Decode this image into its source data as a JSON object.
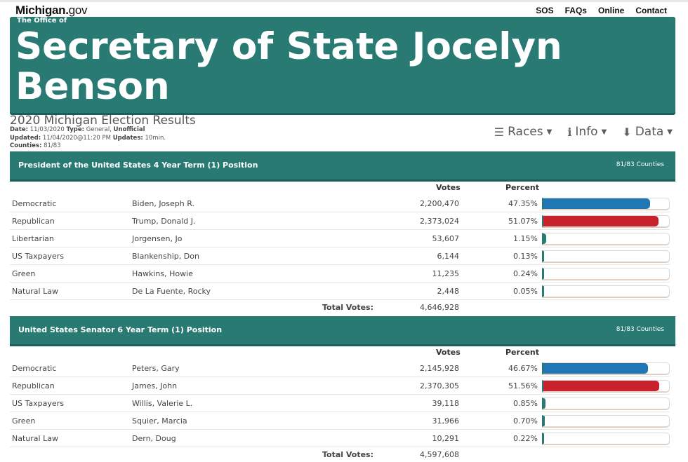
{
  "site": {
    "brand_main": "Michigan.",
    "brand_suffix": "gov"
  },
  "top_nav": [
    "SOS",
    "FAQs",
    "Online",
    "Contact"
  ],
  "banner": {
    "office_label": "The Office of",
    "title": "Secretary of State Jocelyn Benson"
  },
  "results": {
    "title": "2020 Michigan Election Results",
    "date_label": "Date:",
    "date": "11/03/2020",
    "type_label": "Type:",
    "type": "General,",
    "status": "Unofficial",
    "updated_label": "Updated:",
    "updated": "11/04/2020@11:20 PM",
    "updates_label": "Updates:",
    "updates": "10min.",
    "counties_label": "Counties:",
    "counties": "81/83"
  },
  "menu": {
    "races": "Races",
    "info": "Info",
    "data": "Data"
  },
  "colors": {
    "teal": "#287a73",
    "democratic": "#1f78b4",
    "republican": "#c8232c",
    "other": "#287a73"
  },
  "columns": {
    "votes": "Votes",
    "percent": "Percent"
  },
  "total_label": "Total Votes:",
  "races": [
    {
      "title": "President of the United States 4 Year Term (1) Position",
      "counties": "81/83 Counties",
      "total": "4,646,928",
      "rows": [
        {
          "party": "Democratic",
          "candidate": "Biden, Joseph R.",
          "votes": "2,200,470",
          "percent": "47.35%",
          "pct_value": 47.35,
          "color": "#1f78b4"
        },
        {
          "party": "Republican",
          "candidate": "Trump, Donald J.",
          "votes": "2,373,024",
          "percent": "51.07%",
          "pct_value": 51.07,
          "color": "#c8232c"
        },
        {
          "party": "Libertarian",
          "candidate": "Jorgensen, Jo",
          "votes": "53,607",
          "percent": "1.15%",
          "pct_value": 1.15,
          "color": "#287a73"
        },
        {
          "party": "US Taxpayers",
          "candidate": "Blankenship, Don",
          "votes": "6,144",
          "percent": "0.13%",
          "pct_value": 0.13,
          "color": "#287a73"
        },
        {
          "party": "Green",
          "candidate": "Hawkins, Howie",
          "votes": "11,235",
          "percent": "0.24%",
          "pct_value": 0.24,
          "color": "#287a73"
        },
        {
          "party": "Natural Law",
          "candidate": "De La Fuente, Rocky",
          "votes": "2,448",
          "percent": "0.05%",
          "pct_value": 0.05,
          "color": "#287a73"
        }
      ]
    },
    {
      "title": "United States Senator 6 Year Term (1) Position",
      "counties": "81/83 Counties",
      "total": "4,597,608",
      "rows": [
        {
          "party": "Democratic",
          "candidate": "Peters, Gary",
          "votes": "2,145,928",
          "percent": "46.67%",
          "pct_value": 46.67,
          "color": "#1f78b4"
        },
        {
          "party": "Republican",
          "candidate": "James, John",
          "votes": "2,370,305",
          "percent": "51.56%",
          "pct_value": 51.56,
          "color": "#c8232c"
        },
        {
          "party": "US Taxpayers",
          "candidate": "Willis, Valerie L.",
          "votes": "39,118",
          "percent": "0.85%",
          "pct_value": 0.85,
          "color": "#287a73"
        },
        {
          "party": "Green",
          "candidate": "Squier, Marcia",
          "votes": "31,966",
          "percent": "0.70%",
          "pct_value": 0.7,
          "color": "#287a73"
        },
        {
          "party": "Natural Law",
          "candidate": "Dern, Doug",
          "votes": "10,291",
          "percent": "0.22%",
          "pct_value": 0.22,
          "color": "#287a73"
        }
      ]
    }
  ]
}
